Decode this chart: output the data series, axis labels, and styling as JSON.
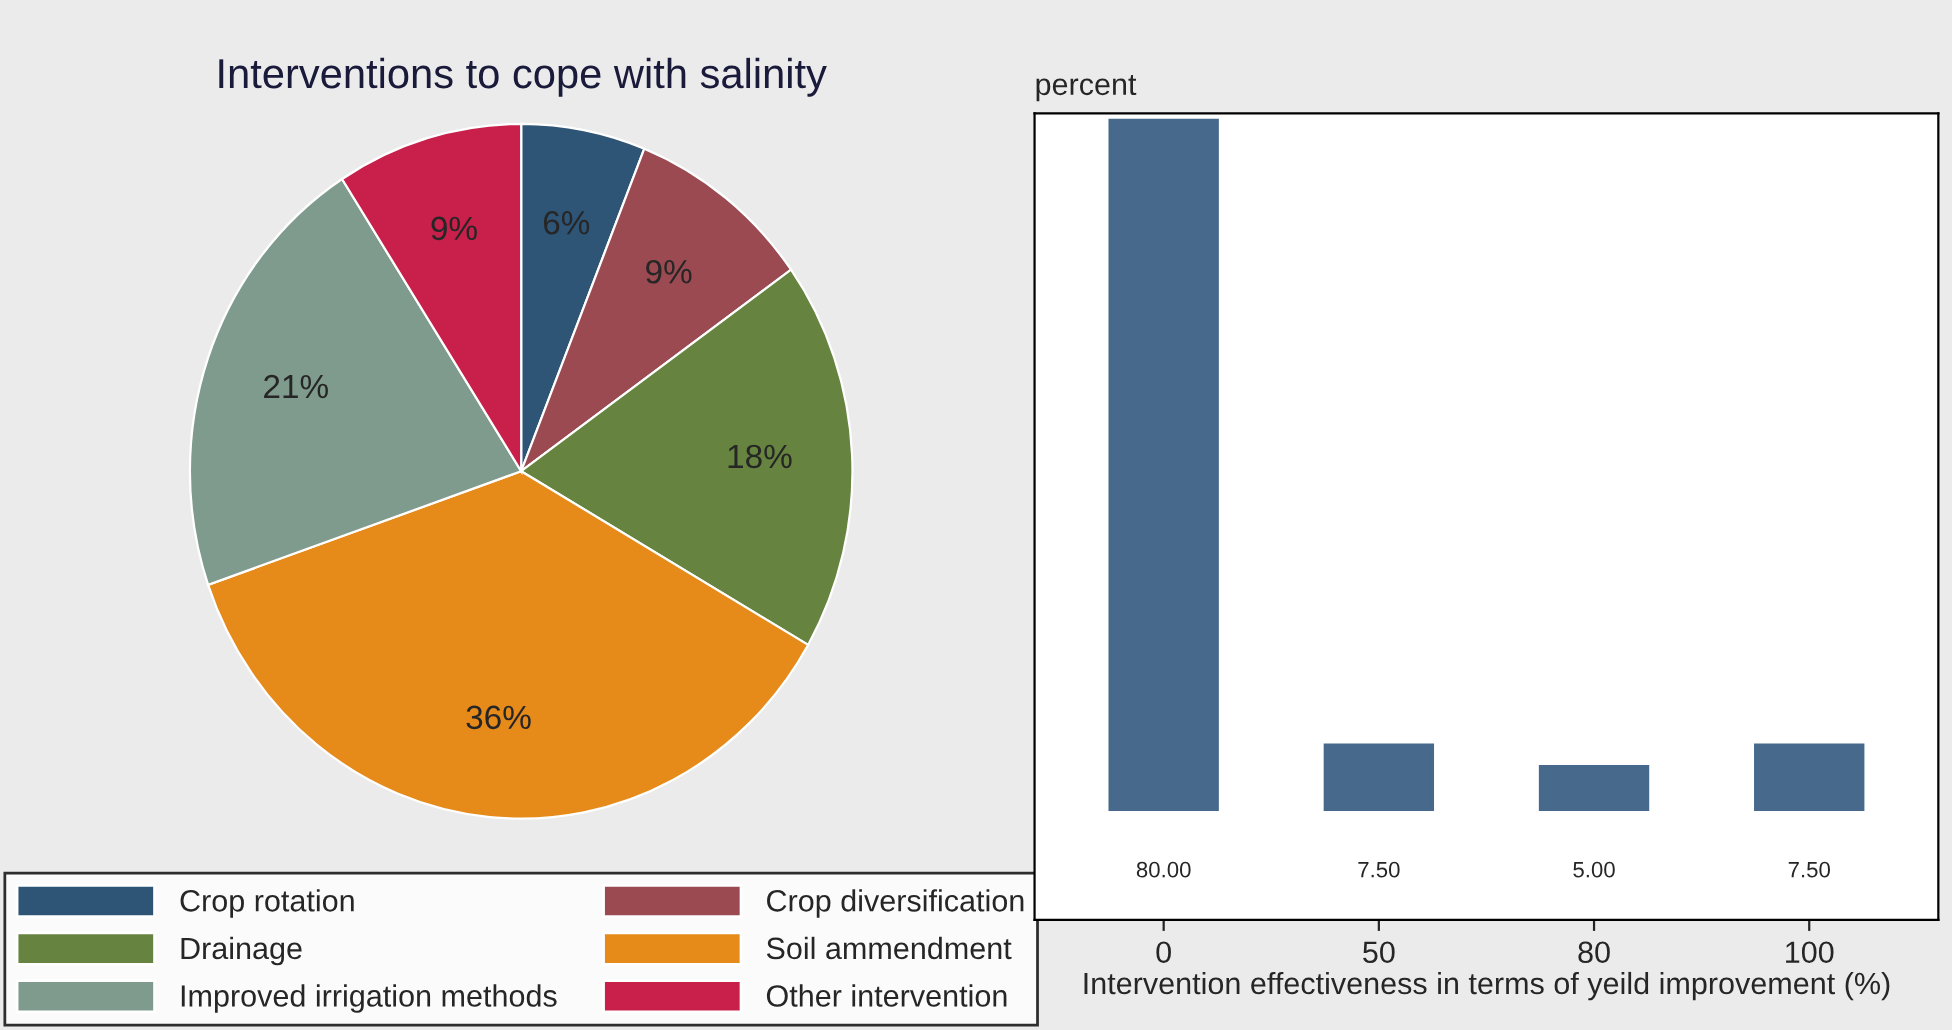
{
  "chart_data": [
    {
      "type": "pie",
      "title": "Interventions to cope with salinity",
      "categories": [
        "Crop rotation",
        "Crop diversification",
        "Drainage",
        "Soil ammendment",
        "Improved irrigation methods",
        "Other intervention"
      ],
      "values": [
        6,
        9,
        18,
        36,
        21,
        9
      ],
      "colors": [
        "#2e5476",
        "#9b4a52",
        "#66843f",
        "#e68a1a",
        "#7f9b8d",
        "#c8204a"
      ],
      "value_labels": [
        "6%",
        "9%",
        "18%",
        "36%",
        "21%",
        "9%"
      ],
      "legend": "bottom"
    },
    {
      "type": "bar",
      "ylabel": "percent",
      "xlabel": "Intervention effectiveness in terms of yeild improvement (%)",
      "categories": [
        "0",
        "50",
        "80",
        "100"
      ],
      "values": [
        80,
        7.5,
        5,
        7.5
      ],
      "color": "#46698c",
      "value_labels": [
        "80.00",
        "7.50",
        "5.00",
        "7.50"
      ],
      "tick_labels": "x",
      "grid": false
    }
  ]
}
